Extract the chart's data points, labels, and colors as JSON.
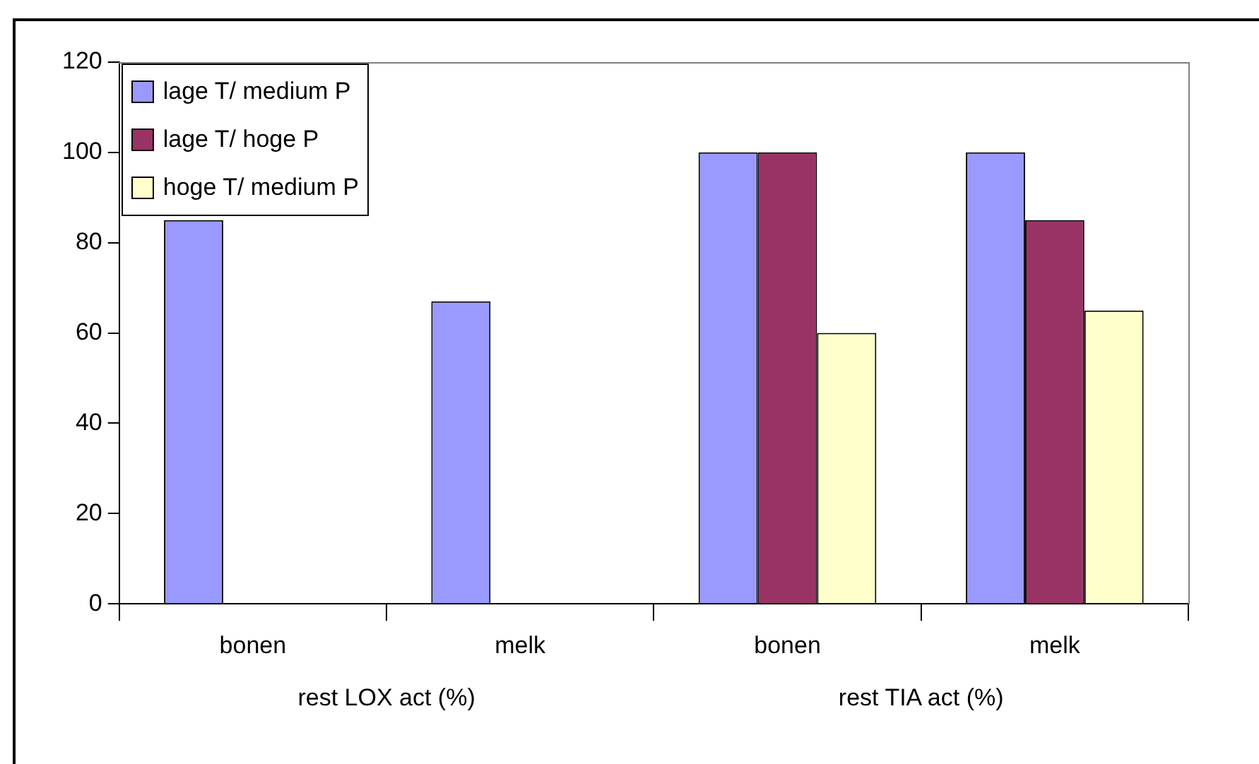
{
  "chart_data": {
    "type": "bar",
    "categories": [
      "bonen",
      "melk",
      "bonen",
      "melk"
    ],
    "annotations": [
      "rest LOX act (%)",
      "rest TIA act (%)"
    ],
    "series": [
      {
        "name": "lage T/ medium P",
        "color": "#9999ff",
        "values": [
          85,
          67,
          100,
          100
        ]
      },
      {
        "name": "lage T/ hoge P",
        "color": "#993366",
        "values": [
          null,
          null,
          100,
          85
        ]
      },
      {
        "name": "hoge T/ medium P",
        "color": "#ffffcc",
        "values": [
          null,
          null,
          60,
          65
        ]
      }
    ],
    "ylim": [
      0,
      120
    ],
    "yticks": [
      0,
      20,
      40,
      60,
      80,
      100,
      120
    ],
    "grid": false,
    "legend": "top left"
  }
}
